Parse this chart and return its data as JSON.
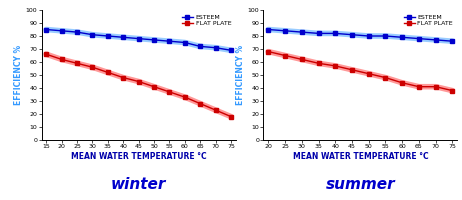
{
  "winter": {
    "x": [
      15,
      20,
      25,
      30,
      35,
      40,
      45,
      50,
      55,
      60,
      65,
      70,
      75
    ],
    "esteem": [
      85,
      84,
      83,
      81,
      80,
      79,
      78,
      77,
      76,
      75,
      72,
      71,
      69
    ],
    "flat_plate": [
      66,
      62,
      59,
      56,
      52,
      48,
      45,
      41,
      37,
      33,
      28,
      23,
      18
    ]
  },
  "summer": {
    "x": [
      20,
      25,
      30,
      35,
      40,
      45,
      50,
      55,
      60,
      65,
      70,
      75
    ],
    "esteem": [
      85,
      84,
      83,
      82,
      82,
      81,
      80,
      80,
      79,
      78,
      77,
      76
    ],
    "flat_plate": [
      68,
      65,
      62,
      59,
      57,
      54,
      51,
      48,
      44,
      41,
      41,
      38
    ]
  },
  "esteem_dark": "#0000CC",
  "esteem_light": "#99CCFF",
  "flat_dark": "#CC0000",
  "flat_light": "#FF9999",
  "ylabel": "EFFICIENCY %",
  "xlabel": "MEAN WATER TEMPERATURE °C",
  "ylabel_color": "#3399FF",
  "xlabel_color": "#0000AA",
  "title_winter": "winter",
  "title_summer": "summer",
  "title_color": "#0000CC",
  "legend_esteem": "ESTEEM",
  "legend_flat": "FLAT PLATE",
  "ylim": [
    0,
    100
  ],
  "yticks": [
    0,
    10,
    20,
    30,
    40,
    50,
    60,
    70,
    80,
    90,
    100
  ],
  "bg_color": "#FFFFFF"
}
